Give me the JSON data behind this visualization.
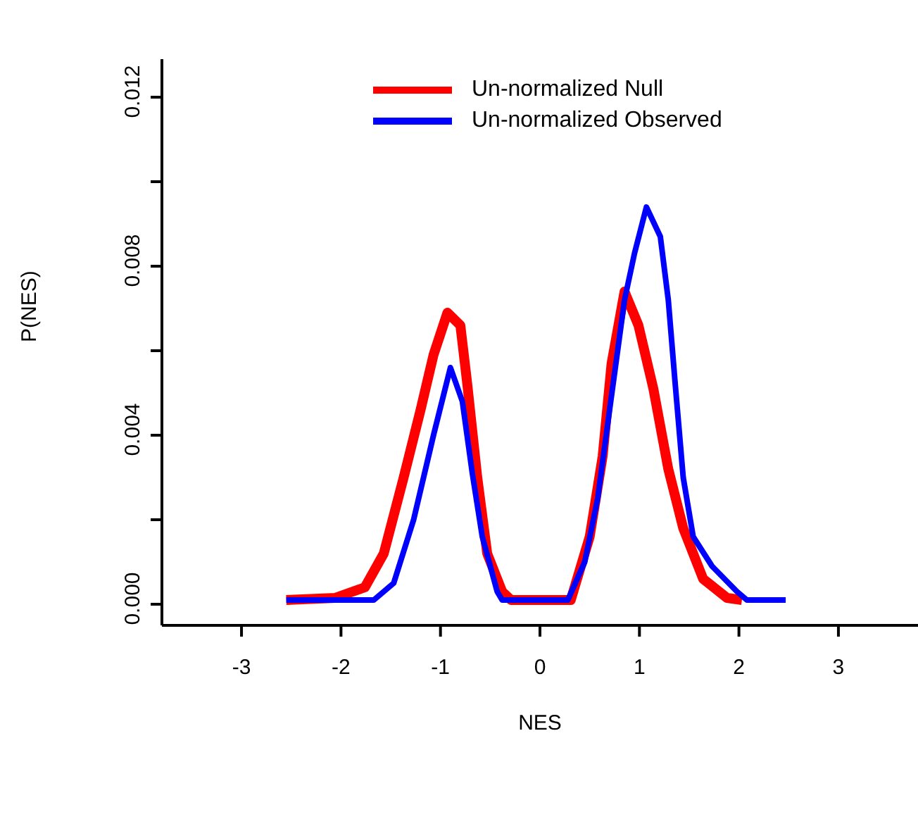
{
  "chart_data": {
    "type": "line",
    "xlabel": "NES",
    "ylabel": "P(NES)",
    "xlim": [
      -3.8,
      3.8
    ],
    "xticks": [
      -3,
      -2,
      -1,
      0,
      1,
      2,
      3
    ],
    "ylim": [
      -0.0005,
      0.0129
    ],
    "yticks": [
      {
        "value": 0,
        "label": "0.000"
      },
      {
        "value": 0.002,
        "label": null
      },
      {
        "value": 0.004,
        "label": "0.004"
      },
      {
        "value": 0.006,
        "label": null
      },
      {
        "value": 0.008,
        "label": "0.008"
      },
      {
        "value": 0.01,
        "label": null
      },
      {
        "value": 0.012,
        "label": "0.012"
      }
    ],
    "grid": false,
    "legend": "top",
    "line_style": "solid",
    "series": [
      {
        "name": "Un-normalized Null",
        "color": "#ff0000",
        "x": [
          -2.55,
          -2.06,
          -1.76,
          -1.57,
          -1.37,
          -1.2,
          -1.07,
          -0.93,
          -0.8,
          -0.73,
          -0.63,
          -0.53,
          -0.38,
          -0.29,
          0.31,
          0.5,
          0.63,
          0.72,
          0.85,
          0.99,
          1.14,
          1.29,
          1.44,
          1.64,
          1.88,
          2.03
        ],
        "values": [
          0.0001,
          0.00015,
          0.0004,
          0.0012,
          0.003,
          0.0046,
          0.0059,
          0.0069,
          0.0066,
          0.0052,
          0.003,
          0.0012,
          0.0003,
          0.0001,
          0.0001,
          0.0016,
          0.0035,
          0.0057,
          0.0074,
          0.0066,
          0.0051,
          0.0032,
          0.0018,
          0.0006,
          0.00015,
          0.0001
        ]
      },
      {
        "name": "Un-normalized Observed",
        "color": "#0000ff",
        "x": [
          -2.55,
          -1.67,
          -1.47,
          -1.27,
          -1.07,
          -0.9,
          -0.78,
          -0.68,
          -0.58,
          -0.43,
          -0.38,
          0.28,
          0.45,
          0.58,
          0.7,
          0.85,
          0.95,
          1.07,
          1.21,
          1.29,
          1.36,
          1.44,
          1.54,
          1.73,
          1.98,
          2.08,
          2.47
        ],
        "values": [
          0.0001,
          0.0001,
          0.0005,
          0.002,
          0.004,
          0.0056,
          0.0048,
          0.0031,
          0.0016,
          0.0003,
          0.0001,
          0.0001,
          0.001,
          0.0025,
          0.0046,
          0.0072,
          0.0083,
          0.0094,
          0.0087,
          0.0072,
          0.0052,
          0.003,
          0.0016,
          0.0009,
          0.0003,
          0.0001,
          0.0001
        ]
      }
    ]
  }
}
